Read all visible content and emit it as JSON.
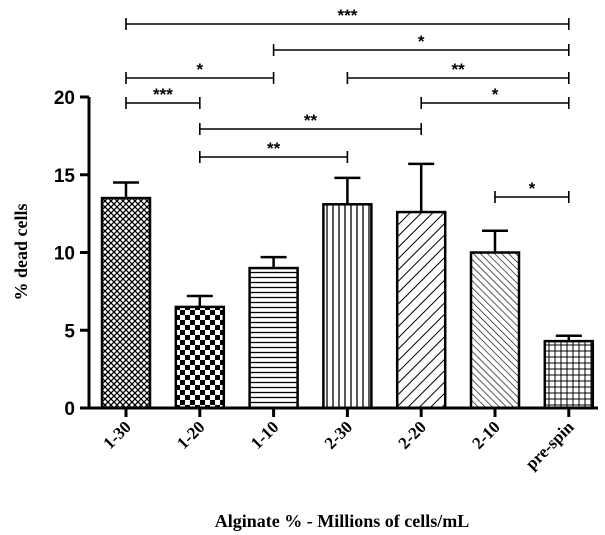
{
  "chart_data": {
    "type": "bar",
    "xlabel": "Alginate % - Millions of cells/mL",
    "ylabel": "% dead cells",
    "ylim": [
      0,
      20
    ],
    "yticks": [
      0,
      5,
      10,
      15,
      20
    ],
    "grid": false,
    "categories": [
      "1-30",
      "1-20",
      "1-10",
      "2-30",
      "2-20",
      "2-10",
      "pre-spin"
    ],
    "values": [
      13.5,
      6.5,
      9.0,
      13.1,
      12.6,
      10.0,
      4.3
    ],
    "errors": [
      1.0,
      0.7,
      0.7,
      1.7,
      3.1,
      1.4,
      0.35
    ],
    "patterns": [
      "crosshatch",
      "checker",
      "horizontal",
      "vertical",
      "diagonal-wide",
      "diagonal-dense",
      "grid"
    ],
    "significance": [
      {
        "from": "1-30",
        "to": "pre-spin",
        "label": "***"
      },
      {
        "from": "1-10",
        "to": "pre-spin",
        "label": "*"
      },
      {
        "from": "1-30",
        "to": "1-10",
        "label": "*"
      },
      {
        "from": "2-30",
        "to": "pre-spin",
        "label": "**"
      },
      {
        "from": "1-30",
        "to": "1-20",
        "label": "***"
      },
      {
        "from": "2-20",
        "to": "pre-spin",
        "label": "*"
      },
      {
        "from": "1-20",
        "to": "2-20",
        "label": "**"
      },
      {
        "from": "1-20",
        "to": "2-30",
        "label": "**"
      },
      {
        "from": "2-10",
        "to": "pre-spin",
        "label": "*"
      }
    ]
  }
}
